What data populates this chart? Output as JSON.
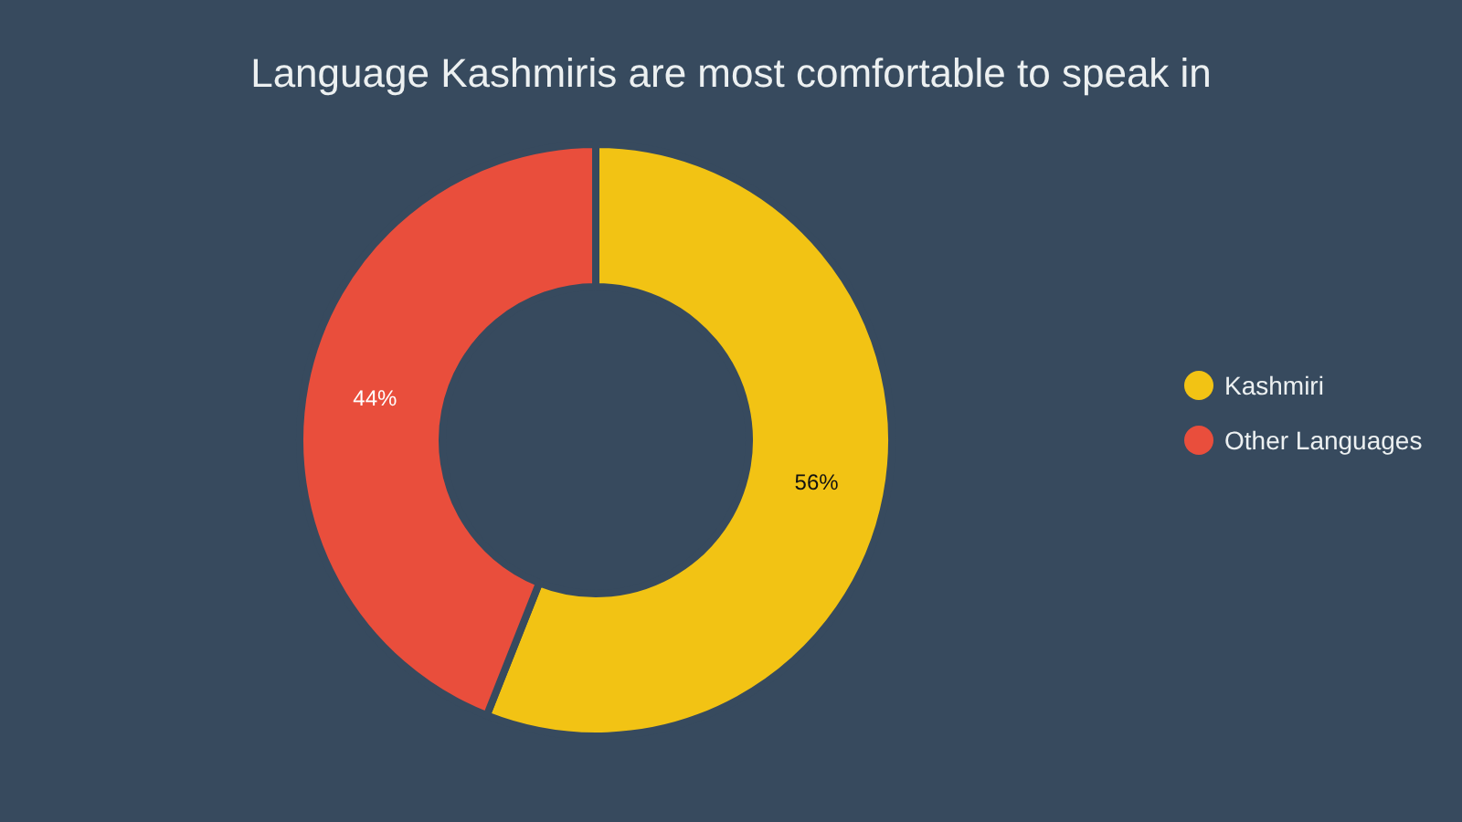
{
  "chart_data": {
    "type": "donut",
    "title": "Language Kashmiris are most comfortable to speak in",
    "categories": [
      "Kashmiri",
      "Other Languages"
    ],
    "values": [
      56,
      44
    ],
    "colors": [
      "#f2c314",
      "#e94e3c"
    ],
    "value_labels": [
      "56%",
      "44%"
    ],
    "legend": "right"
  }
}
